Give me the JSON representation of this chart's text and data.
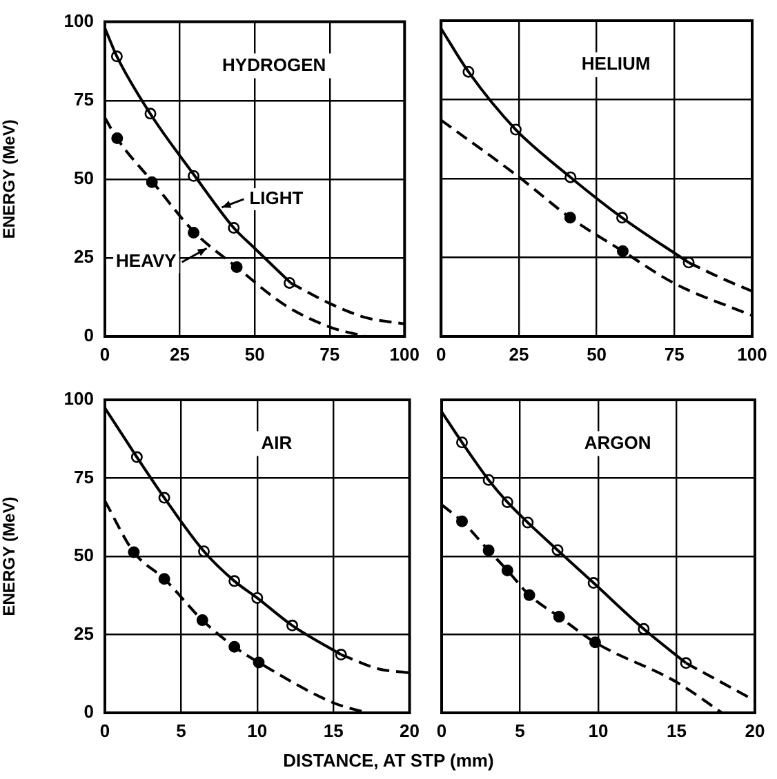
{
  "chart_data": [
    {
      "type": "line",
      "title": "HYDROGEN",
      "ylabel": "ENERGY (MeV)",
      "xlim": [
        0,
        100
      ],
      "xticks": [
        0,
        25,
        50,
        75,
        100
      ],
      "ylim": [
        0,
        100
      ],
      "yticks": [
        0,
        25,
        50,
        75,
        100
      ],
      "grid": true,
      "annotations": [
        {
          "text": "LIGHT",
          "x": 39,
          "y": 41
        },
        {
          "text": "HEAVY",
          "x": 34,
          "y": 28
        }
      ],
      "series": [
        {
          "type": "line",
          "color": "#000000",
          "line_style": "solid",
          "marker": "none",
          "x": [
            0,
            4,
            15,
            30,
            43,
            50,
            62
          ],
          "values": [
            98,
            89,
            71,
            51,
            34.5,
            28,
            17
          ]
        },
        {
          "type": "line",
          "color": "#000000",
          "line_style": "dashed",
          "marker": "none",
          "x": [
            62,
            75,
            87,
            100
          ],
          "values": [
            17,
            10.5,
            6,
            4
          ]
        },
        {
          "type": "line",
          "color": "#000000",
          "line_style": "dashed",
          "marker": "none",
          "x": [
            0,
            4,
            16,
            30,
            44,
            60,
            75,
            87
          ],
          "values": [
            69.5,
            63,
            49,
            33,
            22,
            10,
            3,
            0
          ]
        },
        {
          "type": "scatter",
          "color": "#ffffff",
          "marker": "circle",
          "x": [
            4,
            15.2,
            29.6,
            43,
            61.6
          ],
          "values": [
            89,
            70.8,
            51,
            34.5,
            17
          ]
        },
        {
          "type": "scatter",
          "color": "#000000",
          "marker": "circle",
          "x": [
            4.1,
            15.7,
            29.6,
            44
          ],
          "values": [
            63,
            49,
            33,
            22
          ]
        }
      ]
    },
    {
      "type": "line",
      "title": "HELIUM",
      "xlim": [
        0,
        100
      ],
      "xticks": [
        0,
        25,
        50,
        75,
        100
      ],
      "ylim": [
        0,
        100
      ],
      "yticks": [
        0,
        25,
        50,
        75,
        100
      ],
      "grid": true,
      "tick_labels": "x",
      "series": [
        {
          "type": "line",
          "color": "#000000",
          "line_style": "solid",
          "marker": "none",
          "x": [
            0,
            8.8,
            24,
            41.6,
            58.2,
            79.6
          ],
          "values": [
            97.5,
            83.8,
            65.5,
            50.4,
            37.6,
            23.4
          ]
        },
        {
          "type": "line",
          "color": "#000000",
          "line_style": "dashed",
          "marker": "none",
          "x": [
            79.6,
            90,
            100
          ],
          "values": [
            23.4,
            18.5,
            14.3
          ]
        },
        {
          "type": "line",
          "color": "#000000",
          "line_style": "dashed",
          "marker": "none",
          "x": [
            0,
            25,
            41.5,
            58.4,
            75,
            100
          ],
          "values": [
            68.5,
            50.5,
            37.6,
            27,
            16.8,
            6.6
          ]
        },
        {
          "type": "scatter",
          "color": "#ffffff",
          "marker": "circle",
          "x": [
            8.8,
            24,
            41.6,
            58.2,
            79.6
          ],
          "values": [
            83.8,
            65.5,
            50.4,
            37.6,
            23.4
          ]
        },
        {
          "type": "scatter",
          "color": "#000000",
          "marker": "circle",
          "x": [
            41.5,
            58.4
          ],
          "values": [
            37.6,
            27
          ]
        }
      ]
    },
    {
      "type": "line",
      "title": "AIR",
      "ylabel": "ENERGY (MeV)",
      "xlabel": "DISTANCE, AT STP (mm)",
      "xlim": [
        0,
        20
      ],
      "xticks": [
        0,
        5,
        10,
        15,
        20
      ],
      "ylim": [
        0,
        100
      ],
      "yticks": [
        0,
        25,
        50,
        75,
        100
      ],
      "grid": true,
      "series": [
        {
          "type": "line",
          "color": "#000000",
          "line_style": "solid",
          "marker": "none",
          "x": [
            0,
            2.1,
            3.9,
            6.5,
            8.5,
            10,
            12.3,
            15.5
          ],
          "values": [
            97.4,
            81.7,
            68.7,
            51.6,
            42.1,
            36.7,
            27.9,
            18.6
          ]
        },
        {
          "type": "line",
          "color": "#000000",
          "line_style": "dashed",
          "marker": "none",
          "x": [
            15.5,
            18,
            20
          ],
          "values": [
            18.6,
            14,
            12.8
          ]
        },
        {
          "type": "line",
          "color": "#000000",
          "line_style": "dashed",
          "marker": "none",
          "x": [
            0,
            1.9,
            3.9,
            6.4,
            8.5,
            10.1,
            15,
            17.2
          ],
          "values": [
            67.7,
            51.3,
            42.8,
            29.6,
            21.1,
            16.1,
            3.2,
            0
          ]
        },
        {
          "type": "scatter",
          "color": "#ffffff",
          "marker": "circle",
          "x": [
            2.1,
            3.9,
            6.5,
            8.5,
            10,
            12.3,
            15.5
          ],
          "values": [
            81.7,
            68.7,
            51.6,
            42.1,
            36.7,
            27.9,
            18.6
          ]
        },
        {
          "type": "scatter",
          "color": "#000000",
          "marker": "circle",
          "x": [
            1.9,
            3.9,
            6.4,
            8.5,
            10.1
          ],
          "values": [
            51.3,
            42.8,
            29.6,
            21.1,
            16.1
          ]
        }
      ]
    },
    {
      "type": "line",
      "title": "ARGON",
      "xlim": [
        0,
        20
      ],
      "xticks": [
        0,
        5,
        10,
        15,
        20
      ],
      "ylim": [
        0,
        100
      ],
      "yticks": [
        0,
        25,
        50,
        75,
        100
      ],
      "grid": true,
      "tick_labels": "x",
      "series": [
        {
          "type": "line",
          "color": "#000000",
          "line_style": "solid",
          "marker": "none",
          "x": [
            0,
            1.3,
            3,
            4.2,
            5.5,
            7.4,
            9.7,
            12.9,
            15.6
          ],
          "values": [
            96.2,
            86.4,
            74.4,
            67.3,
            60.8,
            52,
            41.5,
            26.8,
            15.9
          ]
        },
        {
          "type": "line",
          "color": "#000000",
          "line_style": "dashed",
          "marker": "none",
          "x": [
            15.6,
            20
          ],
          "values": [
            15.9,
            3.9
          ]
        },
        {
          "type": "line",
          "color": "#000000",
          "line_style": "dashed",
          "marker": "none",
          "x": [
            0,
            1.3,
            3,
            4.2,
            5.6,
            7.5,
            9.8,
            15,
            17.9
          ],
          "values": [
            66.5,
            61.2,
            51.9,
            45.5,
            37.6,
            30.7,
            22.5,
            9.8,
            0
          ]
        },
        {
          "type": "scatter",
          "color": "#ffffff",
          "marker": "circle",
          "x": [
            1.3,
            3,
            4.2,
            5.5,
            7.4,
            9.7,
            12.9,
            15.6
          ],
          "values": [
            86.4,
            74.4,
            67.3,
            60.8,
            52,
            41.5,
            26.8,
            15.9
          ]
        },
        {
          "type": "scatter",
          "color": "#000000",
          "marker": "circle",
          "x": [
            1.3,
            3,
            4.2,
            5.6,
            7.5,
            9.8
          ],
          "values": [
            61.2,
            51.9,
            45.5,
            37.6,
            30.7,
            22.5
          ]
        }
      ]
    }
  ]
}
